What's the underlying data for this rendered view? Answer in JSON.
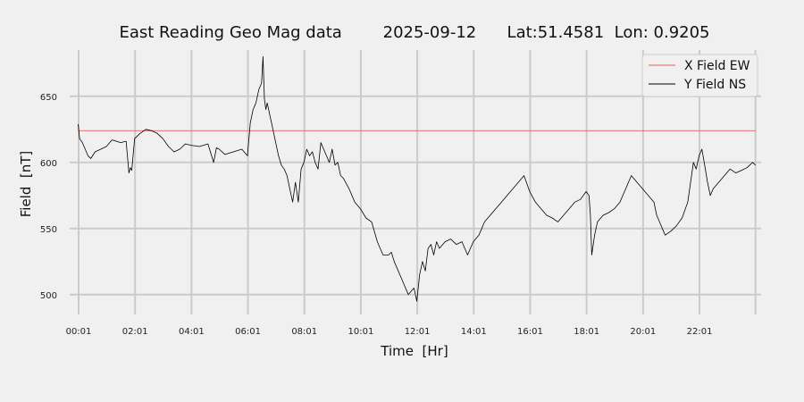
{
  "chart_data": {
    "type": "line",
    "title": "East Reading Geo Mag data        2025-09-12      Lat:51.4581  Lon: 0.9205",
    "xlabel": "Time  [Hr]",
    "ylabel": "Field  [nT]",
    "x_unit": "hour of day",
    "xlim": [
      -0.3,
      24.2
    ],
    "ylim": [
      485,
      685
    ],
    "x_ticks": [
      {
        "value": 0.0167,
        "label": "00:01"
      },
      {
        "value": 2.0167,
        "label": "02:01"
      },
      {
        "value": 4.0167,
        "label": "04:01"
      },
      {
        "value": 6.0167,
        "label": "06:01"
      },
      {
        "value": 8.0167,
        "label": "08:01"
      },
      {
        "value": 10.0167,
        "label": "10:01"
      },
      {
        "value": 12.0167,
        "label": "12:01"
      },
      {
        "value": 14.0167,
        "label": "14:01"
      },
      {
        "value": 16.0167,
        "label": "16:01"
      },
      {
        "value": 18.0167,
        "label": "18:01"
      },
      {
        "value": 20.0167,
        "label": "20:01"
      },
      {
        "value": 22.0167,
        "label": "22:01"
      },
      {
        "value": 24.0,
        "label": ""
      }
    ],
    "y_ticks": [
      500,
      550,
      600,
      650
    ],
    "grid": true,
    "legend_position": "top-right",
    "series": [
      {
        "name": "X Field EW",
        "color": "#e06060",
        "x": [
          0.0,
          24.0
        ],
        "y": [
          624,
          624
        ]
      },
      {
        "name": "Y Field NS",
        "color": "#000000",
        "x": [
          0.0,
          0.05,
          0.15,
          0.25,
          0.35,
          0.45,
          0.6,
          0.8,
          1.0,
          1.2,
          1.5,
          1.7,
          1.8,
          1.85,
          1.9,
          2.0,
          2.2,
          2.4,
          2.6,
          2.8,
          3.0,
          3.2,
          3.4,
          3.6,
          3.8,
          4.0,
          4.3,
          4.6,
          4.8,
          4.9,
          5.0,
          5.2,
          5.5,
          5.8,
          6.0,
          6.1,
          6.2,
          6.3,
          6.4,
          6.5,
          6.55,
          6.6,
          6.65,
          6.7,
          6.8,
          6.9,
          7.0,
          7.1,
          7.2,
          7.3,
          7.4,
          7.5,
          7.6,
          7.7,
          7.8,
          7.9,
          8.0,
          8.1,
          8.2,
          8.3,
          8.4,
          8.5,
          8.6,
          8.7,
          8.8,
          8.9,
          9.0,
          9.1,
          9.2,
          9.3,
          9.4,
          9.6,
          9.8,
          10.0,
          10.2,
          10.4,
          10.6,
          10.8,
          11.0,
          11.1,
          11.2,
          11.3,
          11.5,
          11.7,
          11.9,
          12.0,
          12.1,
          12.2,
          12.3,
          12.4,
          12.5,
          12.6,
          12.7,
          12.8,
          13.0,
          13.2,
          13.4,
          13.6,
          13.8,
          14.0,
          14.2,
          14.4,
          14.6,
          14.8,
          15.0,
          15.2,
          15.4,
          15.6,
          15.8,
          16.0,
          16.2,
          16.4,
          16.6,
          16.8,
          17.0,
          17.2,
          17.4,
          17.6,
          17.8,
          18.0,
          18.1,
          18.15,
          18.2,
          18.3,
          18.4,
          18.6,
          18.8,
          19.0,
          19.2,
          19.4,
          19.6,
          19.8,
          20.0,
          20.2,
          20.4,
          20.5,
          20.6,
          20.7,
          20.8,
          21.0,
          21.2,
          21.4,
          21.6,
          21.8,
          21.9,
          22.0,
          22.1,
          22.2,
          22.3,
          22.4,
          22.5,
          22.7,
          22.9,
          23.1,
          23.3,
          23.5,
          23.7,
          23.9,
          24.0
        ],
        "y": [
          629,
          618,
          615,
          610,
          605,
          603,
          608,
          610,
          612,
          617,
          615,
          616,
          592,
          596,
          594,
          618,
          622,
          625,
          624,
          622,
          618,
          612,
          608,
          610,
          614,
          613,
          612,
          614,
          600,
          611,
          610,
          606,
          608,
          610,
          605,
          630,
          640,
          645,
          655,
          660,
          680,
          648,
          640,
          645,
          635,
          625,
          615,
          605,
          598,
          595,
          590,
          580,
          570,
          585,
          570,
          595,
          600,
          610,
          605,
          608,
          600,
          595,
          615,
          610,
          605,
          600,
          610,
          598,
          600,
          590,
          588,
          580,
          570,
          565,
          558,
          555,
          540,
          530,
          530,
          532,
          525,
          520,
          510,
          500,
          505,
          495,
          515,
          525,
          518,
          535,
          538,
          530,
          540,
          535,
          540,
          542,
          538,
          540,
          530,
          540,
          545,
          555,
          560,
          565,
          570,
          575,
          580,
          585,
          590,
          578,
          570,
          565,
          560,
          558,
          555,
          560,
          565,
          570,
          572,
          578,
          575,
          560,
          530,
          545,
          555,
          560,
          562,
          565,
          570,
          580,
          590,
          585,
          580,
          575,
          570,
          560,
          555,
          550,
          545,
          548,
          552,
          558,
          570,
          600,
          595,
          605,
          610,
          598,
          585,
          575,
          580,
          585,
          590,
          595,
          592,
          594,
          596,
          600,
          598
        ]
      }
    ]
  }
}
